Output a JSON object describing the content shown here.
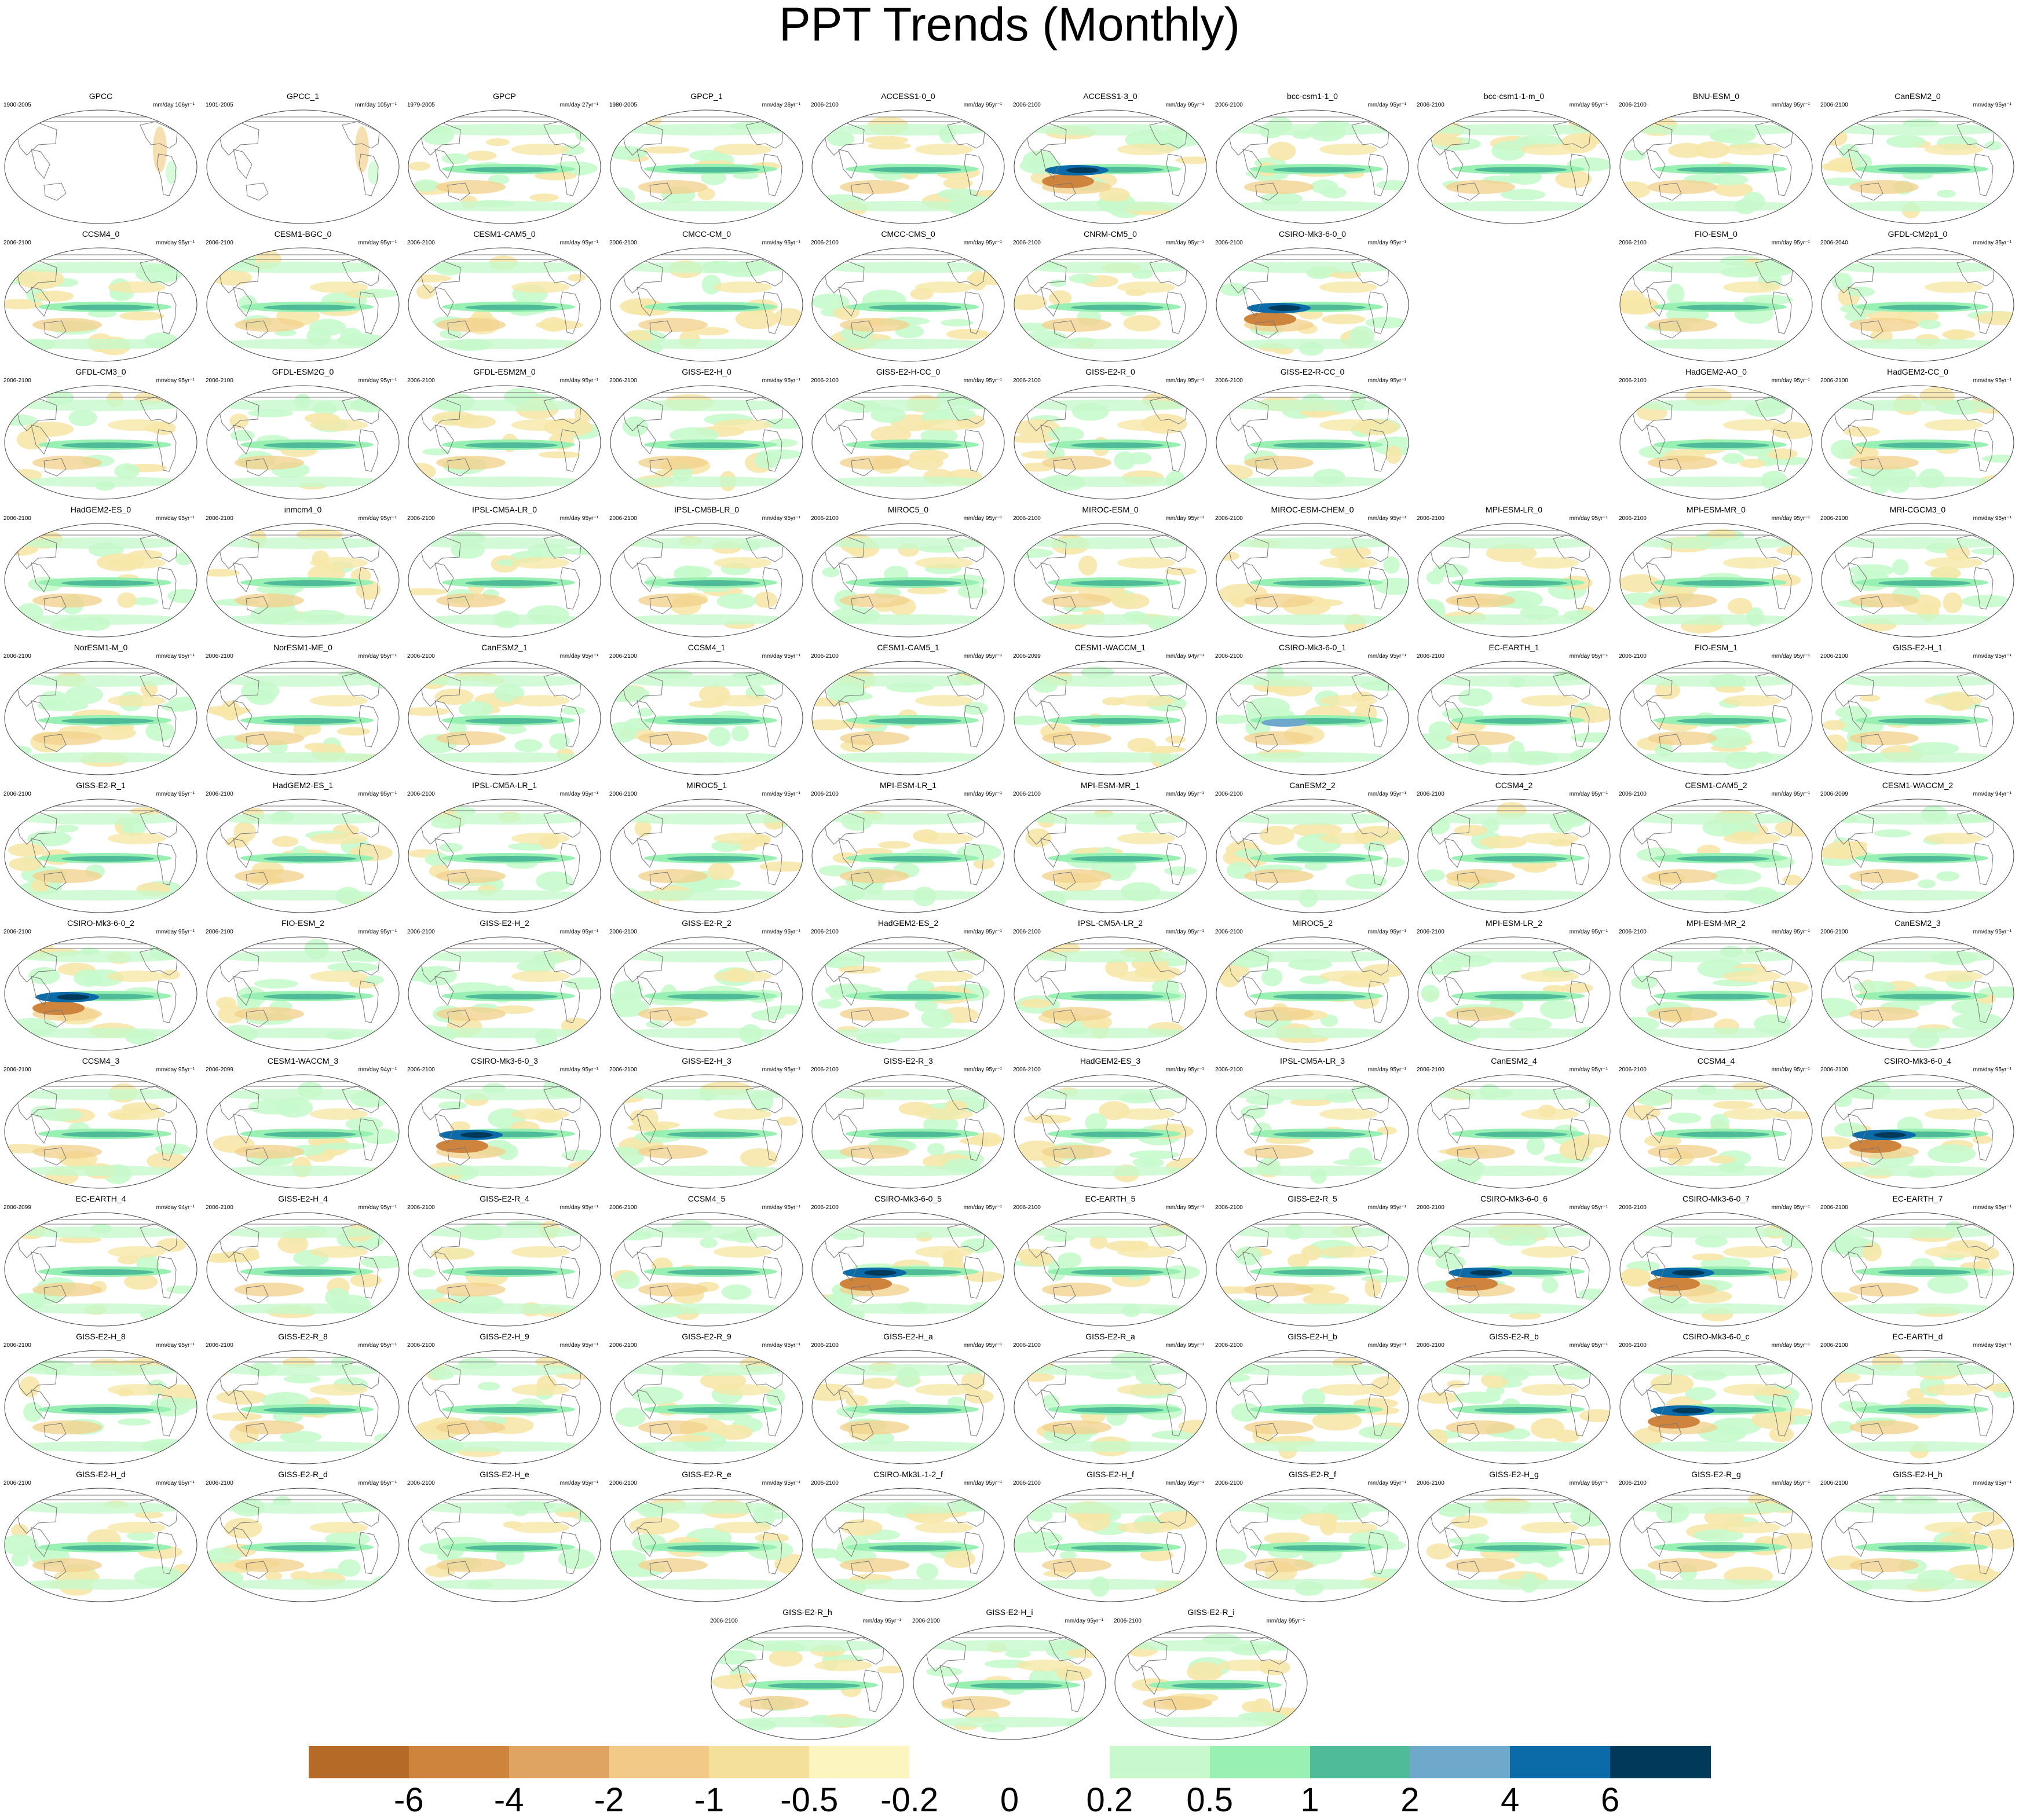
{
  "title": "PPT Trends (Monthly)",
  "panels": [
    {
      "name": "GPCC",
      "years": "1900-2005",
      "units": "mm/day 106yr⁻¹",
      "obs": true
    },
    {
      "name": "GPCC_1",
      "years": "1901-2005",
      "units": "mm/day 105yr⁻¹",
      "obs": true
    },
    {
      "name": "GPCP",
      "years": "1979-2005",
      "units": "mm/day 27yr⁻¹"
    },
    {
      "name": "GPCP_1",
      "years": "1980-2005",
      "units": "mm/day 26yr⁻¹"
    },
    {
      "name": "ACCESS1-0_0",
      "years": "2006-2100",
      "units": "mm/day 95yr⁻¹"
    },
    {
      "name": "ACCESS1-3_0",
      "years": "2006-2100",
      "units": "mm/day 95yr⁻¹",
      "strength": "strong"
    },
    {
      "name": "bcc-csm1-1_0",
      "years": "2006-2100",
      "units": "mm/day 95yr⁻¹"
    },
    {
      "name": "bcc-csm1-1-m_0",
      "years": "2006-2100",
      "units": "mm/day 95yr⁻¹"
    },
    {
      "name": "BNU-ESM_0",
      "years": "2006-2100",
      "units": "mm/day 95yr⁻¹"
    },
    {
      "name": "CanESM2_0",
      "years": "2006-2100",
      "units": "mm/day 95yr⁻¹"
    },
    {
      "name": "CCSM4_0",
      "years": "2006-2100",
      "units": "mm/day 95yr⁻¹"
    },
    {
      "name": "CESM1-BGC_0",
      "years": "2006-2100",
      "units": "mm/day 95yr⁻¹"
    },
    {
      "name": "CESM1-CAM5_0",
      "years": "2006-2100",
      "units": "mm/day 95yr⁻¹"
    },
    {
      "name": "CMCC-CM_0",
      "years": "2006-2100",
      "units": "mm/day 95yr⁻¹"
    },
    {
      "name": "CMCC-CMS_0",
      "years": "2006-2100",
      "units": "mm/day 95yr⁻¹"
    },
    {
      "name": "CNRM-CM5_0",
      "years": "2006-2100",
      "units": "mm/day 95yr⁻¹"
    },
    {
      "name": "CSIRO-Mk3-6-0_0",
      "years": "2006-2100",
      "units": "mm/day 95yr⁻¹",
      "strength": "strong"
    },
    null,
    {
      "name": "FIO-ESM_0",
      "years": "2006-2100",
      "units": "mm/day 95yr⁻¹"
    },
    {
      "name": "GFDL-CM2p1_0",
      "years": "2006-2040",
      "units": "mm/day 35yr⁻¹"
    },
    {
      "name": "GFDL-CM3_0",
      "years": "2006-2100",
      "units": "mm/day 95yr⁻¹"
    },
    {
      "name": "GFDL-ESM2G_0",
      "years": "2006-2100",
      "units": "mm/day 95yr⁻¹"
    },
    {
      "name": "GFDL-ESM2M_0",
      "years": "2006-2100",
      "units": "mm/day 95yr⁻¹"
    },
    {
      "name": "GISS-E2-H_0",
      "years": "2006-2100",
      "units": "mm/day 95yr⁻¹"
    },
    {
      "name": "GISS-E2-H-CC_0",
      "years": "2006-2100",
      "units": "mm/day 95yr⁻¹"
    },
    {
      "name": "GISS-E2-R_0",
      "years": "2006-2100",
      "units": "mm/day 95yr⁻¹"
    },
    {
      "name": "GISS-E2-R-CC_0",
      "years": "2006-2100",
      "units": "mm/day 95yr⁻¹"
    },
    null,
    {
      "name": "HadGEM2-AO_0",
      "years": "2006-2100",
      "units": "mm/day 95yr⁻¹"
    },
    {
      "name": "HadGEM2-CC_0",
      "years": "2006-2100",
      "units": "mm/day 95yr⁻¹"
    },
    {
      "name": "HadGEM2-ES_0",
      "years": "2006-2100",
      "units": "mm/day 95yr⁻¹"
    },
    {
      "name": "inmcm4_0",
      "years": "2006-2100",
      "units": "mm/day 95yr⁻¹"
    },
    {
      "name": "IPSL-CM5A-LR_0",
      "years": "2006-2100",
      "units": "mm/day 95yr⁻¹"
    },
    {
      "name": "IPSL-CM5B-LR_0",
      "years": "2006-2100",
      "units": "mm/day 95yr⁻¹"
    },
    {
      "name": "MIROC5_0",
      "years": "2006-2100",
      "units": "mm/day 95yr⁻¹"
    },
    {
      "name": "MIROC-ESM_0",
      "years": "2006-2100",
      "units": "mm/day 95yr⁻¹"
    },
    {
      "name": "MIROC-ESM-CHEM_0",
      "years": "2006-2100",
      "units": "mm/day 95yr⁻¹"
    },
    {
      "name": "MPI-ESM-LR_0",
      "years": "2006-2100",
      "units": "mm/day 95yr⁻¹"
    },
    {
      "name": "MPI-ESM-MR_0",
      "years": "2006-2100",
      "units": "mm/day 95yr⁻¹"
    },
    {
      "name": "MRI-CGCM3_0",
      "years": "2006-2100",
      "units": "mm/day 95yr⁻¹"
    },
    {
      "name": "NorESM1-M_0",
      "years": "2006-2100",
      "units": "mm/day 95yr⁻¹"
    },
    {
      "name": "NorESM1-ME_0",
      "years": "2006-2100",
      "units": "mm/day 95yr⁻¹"
    },
    {
      "name": "CanESM2_1",
      "years": "2006-2100",
      "units": "mm/day 95yr⁻¹"
    },
    {
      "name": "CCSM4_1",
      "years": "2006-2100",
      "units": "mm/day 95yr⁻¹"
    },
    {
      "name": "CESM1-CAM5_1",
      "years": "2006-2100",
      "units": "mm/day 95yr⁻¹"
    },
    {
      "name": "CESM1-WACCM_1",
      "years": "2006-2099",
      "units": "mm/day 94yr⁻¹"
    },
    {
      "name": "CSIRO-Mk3-6-0_1",
      "years": "2006-2100",
      "units": "mm/day 95yr⁻¹",
      "strength": "medium"
    },
    {
      "name": "EC-EARTH_1",
      "years": "2006-2100",
      "units": "mm/day 95yr⁻¹"
    },
    {
      "name": "FIO-ESM_1",
      "years": "2006-2100",
      "units": "mm/day 95yr⁻¹"
    },
    {
      "name": "GISS-E2-H_1",
      "years": "2006-2100",
      "units": "mm/day 95yr⁻¹"
    },
    {
      "name": "GISS-E2-R_1",
      "years": "2006-2100",
      "units": "mm/day 95yr⁻¹"
    },
    {
      "name": "HadGEM2-ES_1",
      "years": "2006-2100",
      "units": "mm/day 95yr⁻¹"
    },
    {
      "name": "IPSL-CM5A-LR_1",
      "years": "2006-2100",
      "units": "mm/day 95yr⁻¹"
    },
    {
      "name": "MIROC5_1",
      "years": "2006-2100",
      "units": "mm/day 95yr⁻¹"
    },
    {
      "name": "MPI-ESM-LR_1",
      "years": "2006-2100",
      "units": "mm/day 95yr⁻¹"
    },
    {
      "name": "MPI-ESM-MR_1",
      "years": "2006-2100",
      "units": "mm/day 95yr⁻¹"
    },
    {
      "name": "CanESM2_2",
      "years": "2006-2100",
      "units": "mm/day 95yr⁻¹"
    },
    {
      "name": "CCSM4_2",
      "years": "2006-2100",
      "units": "mm/day 95yr⁻¹"
    },
    {
      "name": "CESM1-CAM5_2",
      "years": "2006-2100",
      "units": "mm/day 95yr⁻¹"
    },
    {
      "name": "CESM1-WACCM_2",
      "years": "2006-2099",
      "units": "mm/day 94yr⁻¹"
    },
    {
      "name": "CSIRO-Mk3-6-0_2",
      "years": "2006-2100",
      "units": "mm/day 95yr⁻¹",
      "strength": "strong"
    },
    {
      "name": "FIO-ESM_2",
      "years": "2006-2100",
      "units": "mm/day 95yr⁻¹"
    },
    {
      "name": "GISS-E2-H_2",
      "years": "2006-2100",
      "units": "mm/day 95yr⁻¹"
    },
    {
      "name": "GISS-E2-R_2",
      "years": "2006-2100",
      "units": "mm/day 95yr⁻¹"
    },
    {
      "name": "HadGEM2-ES_2",
      "years": "2006-2100",
      "units": "mm/day 95yr⁻¹"
    },
    {
      "name": "IPSL-CM5A-LR_2",
      "years": "2006-2100",
      "units": "mm/day 95yr⁻¹"
    },
    {
      "name": "MIROC5_2",
      "years": "2006-2100",
      "units": "mm/day 95yr⁻¹"
    },
    {
      "name": "MPI-ESM-LR_2",
      "years": "2006-2100",
      "units": "mm/day 95yr⁻¹"
    },
    {
      "name": "MPI-ESM-MR_2",
      "years": "2006-2100",
      "units": "mm/day 95yr⁻¹"
    },
    {
      "name": "CanESM2_3",
      "years": "2006-2100",
      "units": "mm/day 95yr⁻¹"
    },
    {
      "name": "CCSM4_3",
      "years": "2006-2100",
      "units": "mm/day 95yr⁻¹"
    },
    {
      "name": "CESM1-WACCM_3",
      "years": "2006-2099",
      "units": "mm/day 94yr⁻¹"
    },
    {
      "name": "CSIRO-Mk3-6-0_3",
      "years": "2006-2100",
      "units": "mm/day 95yr⁻¹",
      "strength": "strong"
    },
    {
      "name": "GISS-E2-H_3",
      "years": "2006-2100",
      "units": "mm/day 95yr⁻¹"
    },
    {
      "name": "GISS-E2-R_3",
      "years": "2006-2100",
      "units": "mm/day 95yr⁻¹"
    },
    {
      "name": "HadGEM2-ES_3",
      "years": "2006-2100",
      "units": "mm/day 95yr⁻¹"
    },
    {
      "name": "IPSL-CM5A-LR_3",
      "years": "2006-2100",
      "units": "mm/day 95yr⁻¹"
    },
    {
      "name": "CanESM2_4",
      "years": "2006-2100",
      "units": "mm/day 95yr⁻¹"
    },
    {
      "name": "CCSM4_4",
      "years": "2006-2100",
      "units": "mm/day 95yr⁻¹"
    },
    {
      "name": "CSIRO-Mk3-6-0_4",
      "years": "2006-2100",
      "units": "mm/day 95yr⁻¹",
      "strength": "strong"
    },
    {
      "name": "EC-EARTH_4",
      "years": "2006-2099",
      "units": "mm/day 94yr⁻¹"
    },
    {
      "name": "GISS-E2-H_4",
      "years": "2006-2100",
      "units": "mm/day 95yr⁻¹"
    },
    {
      "name": "GISS-E2-R_4",
      "years": "2006-2100",
      "units": "mm/day 95yr⁻¹"
    },
    {
      "name": "CCSM4_5",
      "years": "2006-2100",
      "units": "mm/day 95yr⁻¹"
    },
    {
      "name": "CSIRO-Mk3-6-0_5",
      "years": "2006-2100",
      "units": "mm/day 95yr⁻¹",
      "strength": "strong"
    },
    {
      "name": "EC-EARTH_5",
      "years": "2006-2100",
      "units": "mm/day 95yr⁻¹"
    },
    {
      "name": "GISS-E2-R_5",
      "years": "2006-2100",
      "units": "mm/day 95yr⁻¹"
    },
    {
      "name": "CSIRO-Mk3-6-0_6",
      "years": "2006-2100",
      "units": "mm/day 95yr⁻¹",
      "strength": "strong"
    },
    {
      "name": "CSIRO-Mk3-6-0_7",
      "years": "2006-2100",
      "units": "mm/day 95yr⁻¹",
      "strength": "strong"
    },
    {
      "name": "EC-EARTH_7",
      "years": "2006-2100",
      "units": "mm/day 95yr⁻¹"
    },
    {
      "name": "GISS-E2-H_8",
      "years": "2006-2100",
      "units": "mm/day 95yr⁻¹"
    },
    {
      "name": "GISS-E2-R_8",
      "years": "2006-2100",
      "units": "mm/day 95yr⁻¹"
    },
    {
      "name": "GISS-E2-H_9",
      "years": "2006-2100",
      "units": "mm/day 95yr⁻¹"
    },
    {
      "name": "GISS-E2-R_9",
      "years": "2006-2100",
      "units": "mm/day 95yr⁻¹"
    },
    {
      "name": "GISS-E2-H_a",
      "years": "2006-2100",
      "units": "mm/day 95yr⁻¹"
    },
    {
      "name": "GISS-E2-R_a",
      "years": "2006-2100",
      "units": "mm/day 95yr⁻¹"
    },
    {
      "name": "GISS-E2-H_b",
      "years": "2006-2100",
      "units": "mm/day 95yr⁻¹"
    },
    {
      "name": "GISS-E2-R_b",
      "years": "2006-2100",
      "units": "mm/day 95yr⁻¹"
    },
    {
      "name": "CSIRO-Mk3-6-0_c",
      "years": "2006-2100",
      "units": "mm/day 95yr⁻¹",
      "strength": "strong"
    },
    {
      "name": "EC-EARTH_d",
      "years": "2006-2100",
      "units": "mm/day 95yr⁻¹"
    },
    {
      "name": "GISS-E2-H_d",
      "years": "2006-2100",
      "units": "mm/day 95yr⁻¹"
    },
    {
      "name": "GISS-E2-R_d",
      "years": "2006-2100",
      "units": "mm/day 95yr⁻¹"
    },
    {
      "name": "GISS-E2-H_e",
      "years": "2006-2100",
      "units": "mm/day 95yr⁻¹"
    },
    {
      "name": "GISS-E2-R_e",
      "years": "2006-2100",
      "units": "mm/day 95yr⁻¹"
    },
    {
      "name": "CSIRO-Mk3L-1-2_f",
      "years": "2006-2100",
      "units": "mm/day 95yr⁻¹"
    },
    {
      "name": "GISS-E2-H_f",
      "years": "2006-2100",
      "units": "mm/day 95yr⁻¹"
    },
    {
      "name": "GISS-E2-R_f",
      "years": "2006-2100",
      "units": "mm/day 95yr⁻¹"
    },
    {
      "name": "GISS-E2-H_g",
      "years": "2006-2100",
      "units": "mm/day 95yr⁻¹"
    },
    {
      "name": "GISS-E2-R_g",
      "years": "2006-2100",
      "units": "mm/day 95yr⁻¹"
    },
    {
      "name": "GISS-E2-H_h",
      "years": "2006-2100",
      "units": "mm/day 95yr⁻¹"
    }
  ],
  "last_row": [
    {
      "name": "GISS-E2-R_h",
      "years": "2006-2100",
      "units": "mm/day 95yr⁻¹"
    },
    {
      "name": "GISS-E2-H_i",
      "years": "2006-2100",
      "units": "mm/day 95yr⁻¹"
    },
    {
      "name": "GISS-E2-R_i",
      "years": "2006-2100",
      "units": "mm/day 95yr⁻¹"
    }
  ],
  "colorbar": {
    "colors": [
      "#b56a28",
      "#cf843d",
      "#e0a462",
      "#f2c987",
      "#f4e09b",
      "#fdf5bf",
      "#ffffff",
      "#ffffff",
      "#c7f9cc",
      "#98f0b3",
      "#4fbb99",
      "#6ea9cc",
      "#0b6aa8",
      "#003a5a"
    ],
    "labels": [
      "-6",
      "-4",
      "-2",
      "-1",
      "-0.5",
      "-0.2",
      "0",
      "0.2",
      "0.5",
      "1",
      "2",
      "4",
      "6"
    ]
  }
}
